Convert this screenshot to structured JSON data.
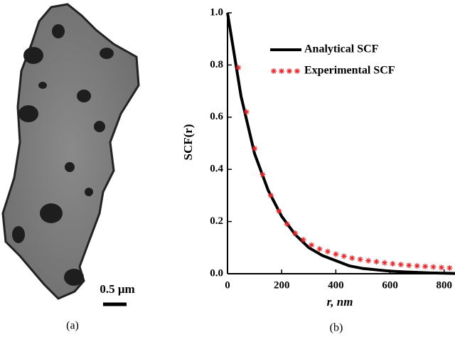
{
  "figure": {
    "panel_a_label": "(a)",
    "scale_bar_label": "0.5 μm",
    "panel_b_label": "(b)"
  },
  "chart_data": {
    "type": "line",
    "x_label": "r, nm",
    "y_label": "SCF(r)",
    "xlim": [
      0,
      840
    ],
    "ylim": [
      0,
      1
    ],
    "xticks": [
      0,
      200,
      400,
      600,
      800
    ],
    "yticks": [
      {
        "value": 0,
        "label": "0.0"
      },
      0.2,
      0.4,
      0.6,
      0.8,
      {
        "value": 1,
        "label": "1.0"
      }
    ],
    "series": [
      {
        "name": "Analytical SCF",
        "color": "#000000",
        "style": "line",
        "x": [
          0,
          50,
          100,
          150,
          200,
          250,
          300,
          350,
          400,
          450,
          500,
          550,
          600,
          650,
          700,
          750,
          800,
          840
        ],
        "values": [
          1.0,
          0.68,
          0.46,
          0.32,
          0.22,
          0.15,
          0.1,
          0.07,
          0.05,
          0.03,
          0.02,
          0.015,
          0.01,
          0.007,
          0.005,
          0.003,
          0.002,
          0.001
        ]
      },
      {
        "name": "Experimental SCF",
        "color": "#e8262a",
        "style": "asterisk",
        "x": [
          40,
          70,
          100,
          130,
          160,
          190,
          220,
          250,
          280,
          310,
          340,
          370,
          400,
          430,
          460,
          490,
          520,
          550,
          580,
          610,
          640,
          670,
          700,
          730,
          760,
          790,
          820
        ],
        "values": [
          0.79,
          0.62,
          0.48,
          0.38,
          0.3,
          0.24,
          0.19,
          0.155,
          0.13,
          0.11,
          0.095,
          0.085,
          0.075,
          0.067,
          0.06,
          0.055,
          0.05,
          0.046,
          0.042,
          0.038,
          0.035,
          0.032,
          0.03,
          0.028,
          0.026,
          0.024,
          0.022
        ]
      }
    ]
  }
}
